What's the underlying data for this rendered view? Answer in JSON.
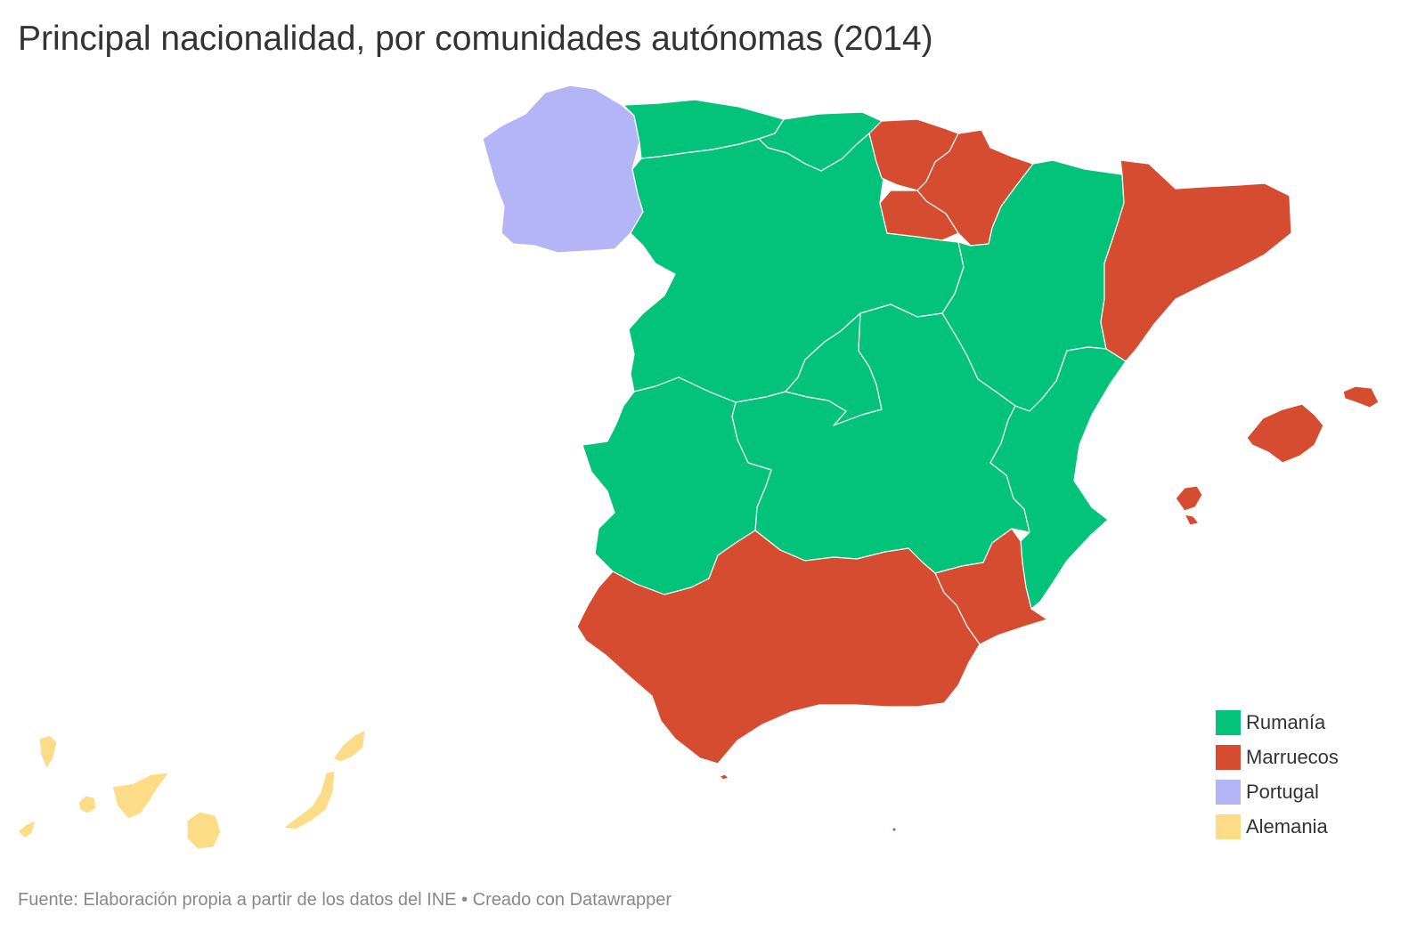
{
  "title": "Principal nacionalidad, por comunidades autónomas (2014)",
  "source": "Fuente: Elaboración propia a partir de los datos del INE • Creado con Datawrapper",
  "legend": [
    {
      "label": "Rumanía",
      "color": "#03c27a"
    },
    {
      "label": "Marruecos",
      "color": "#d64c31"
    },
    {
      "label": "Portugal",
      "color": "#b3b5f6"
    },
    {
      "label": "Alemania",
      "color": "#fcdc86"
    }
  ],
  "regions": [
    {
      "name": "Galicia",
      "category": "Portugal"
    },
    {
      "name": "Asturias",
      "category": "Rumanía"
    },
    {
      "name": "Cantabria",
      "category": "Rumanía"
    },
    {
      "name": "País Vasco",
      "category": "Marruecos"
    },
    {
      "name": "Navarra",
      "category": "Marruecos"
    },
    {
      "name": "La Rioja",
      "category": "Marruecos"
    },
    {
      "name": "Aragón",
      "category": "Rumanía"
    },
    {
      "name": "Cataluña",
      "category": "Marruecos"
    },
    {
      "name": "Castilla y León",
      "category": "Rumanía"
    },
    {
      "name": "Madrid",
      "category": "Rumanía"
    },
    {
      "name": "Castilla-La Mancha",
      "category": "Rumanía"
    },
    {
      "name": "Comunidad Valenciana",
      "category": "Rumanía"
    },
    {
      "name": "Extremadura",
      "category": "Rumanía"
    },
    {
      "name": "Andalucía",
      "category": "Marruecos"
    },
    {
      "name": "Murcia",
      "category": "Marruecos"
    },
    {
      "name": "Islas Baleares",
      "category": "Marruecos"
    },
    {
      "name": "Canarias",
      "category": "Alemania"
    },
    {
      "name": "Ceuta",
      "category": "Marruecos"
    },
    {
      "name": "Melilla",
      "category": "Marruecos"
    }
  ]
}
